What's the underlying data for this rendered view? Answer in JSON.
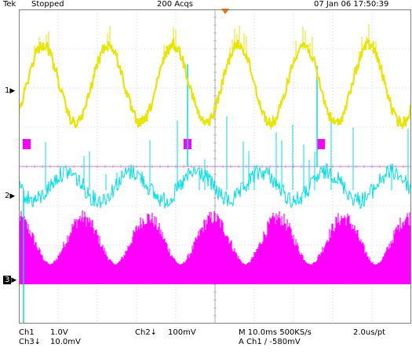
{
  "header": {
    "brand": "Tek",
    "status": "Stopped",
    "acqs": "200 Acqs",
    "datetime": "07 Jan 06 17:50:39"
  },
  "markers": {
    "ch1": "1",
    "ch2": "2",
    "ch3": "3"
  },
  "footer": {
    "ch1_label": "Ch1",
    "ch1_scale": "1.0V",
    "ch3_label": "Ch3↓",
    "ch3_scale": "10.0mV",
    "ch2_label": "Ch2↓",
    "ch2_scale": "100mV",
    "timebase": "M 10.0ms 500KS/s",
    "resolution": "2.0us/pt",
    "trigger": "A  Ch1  ∕  -580mV"
  },
  "colors": {
    "ch1": "#e6e600",
    "ch2": "#00e0e0",
    "ch3": "#ff00ff",
    "grid": "#b8b8b8",
    "trigger": "#ff6a00"
  },
  "trigger_icon": "trigger-position-arrow-icon"
}
